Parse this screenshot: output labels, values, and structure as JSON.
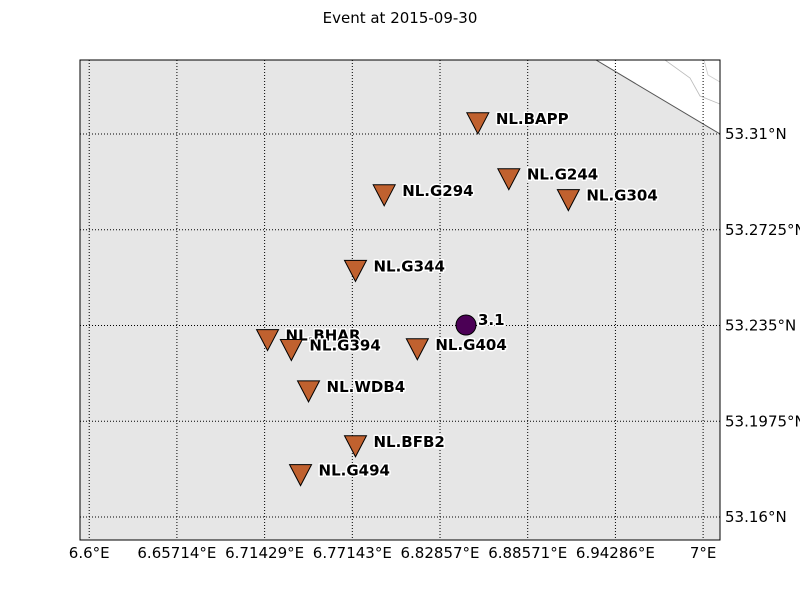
{
  "title": "Event at 2015-09-30",
  "map": {
    "lon_ticks": [
      {
        "value": 6.6,
        "label": "6.6°E"
      },
      {
        "value": 6.65714,
        "label": "6.65714°E"
      },
      {
        "value": 6.71429,
        "label": "6.71429°E"
      },
      {
        "value": 6.77143,
        "label": "6.77143°E"
      },
      {
        "value": 6.82857,
        "label": "6.82857°E"
      },
      {
        "value": 6.88571,
        "label": "6.88571°E"
      },
      {
        "value": 6.94286,
        "label": "6.94286°E"
      },
      {
        "value": 7.0,
        "label": "7°E"
      }
    ],
    "lat_ticks": [
      {
        "value": 53.16,
        "label": "53.16°N"
      },
      {
        "value": 53.1975,
        "label": "53.1975°N"
      },
      {
        "value": 53.235,
        "label": "53.235°N"
      },
      {
        "value": 53.2725,
        "label": "53.2725°N"
      },
      {
        "value": 53.31,
        "label": "53.31°N"
      }
    ],
    "lon_range": [
      6.594,
      7.011
    ],
    "lat_range": [
      53.151,
      53.339
    ],
    "grid": true,
    "land_color": "#e6e6e6",
    "water_color": "#ffffff",
    "station_color": "#c0612f",
    "event_color": "#4b0055"
  },
  "stations": [
    {
      "name": "NL.BAPP",
      "lon": 6.8532,
      "lat": 53.3144
    },
    {
      "name": "NL.G244",
      "lon": 6.8734,
      "lat": 53.2925
    },
    {
      "name": "NL.G294",
      "lon": 6.7922,
      "lat": 53.2862
    },
    {
      "name": "NL.G304",
      "lon": 6.9122,
      "lat": 53.2843
    },
    {
      "name": "NL.G344",
      "lon": 6.7735,
      "lat": 53.2566
    },
    {
      "name": "NL.BHAR",
      "lon": 6.7162,
      "lat": 53.2295
    },
    {
      "name": "NL.G394",
      "lon": 6.7317,
      "lat": 53.2256
    },
    {
      "name": "NL.G404",
      "lon": 6.8138,
      "lat": 53.2259
    },
    {
      "name": "NL.WDB4",
      "lon": 6.7429,
      "lat": 53.2094
    },
    {
      "name": "NL.BFB2",
      "lon": 6.7735,
      "lat": 53.1879
    },
    {
      "name": "NL.G494",
      "lon": 6.7377,
      "lat": 53.1766
    }
  ],
  "event": {
    "magnitude": "3.1",
    "lon": 6.8455,
    "lat": 53.2352
  }
}
